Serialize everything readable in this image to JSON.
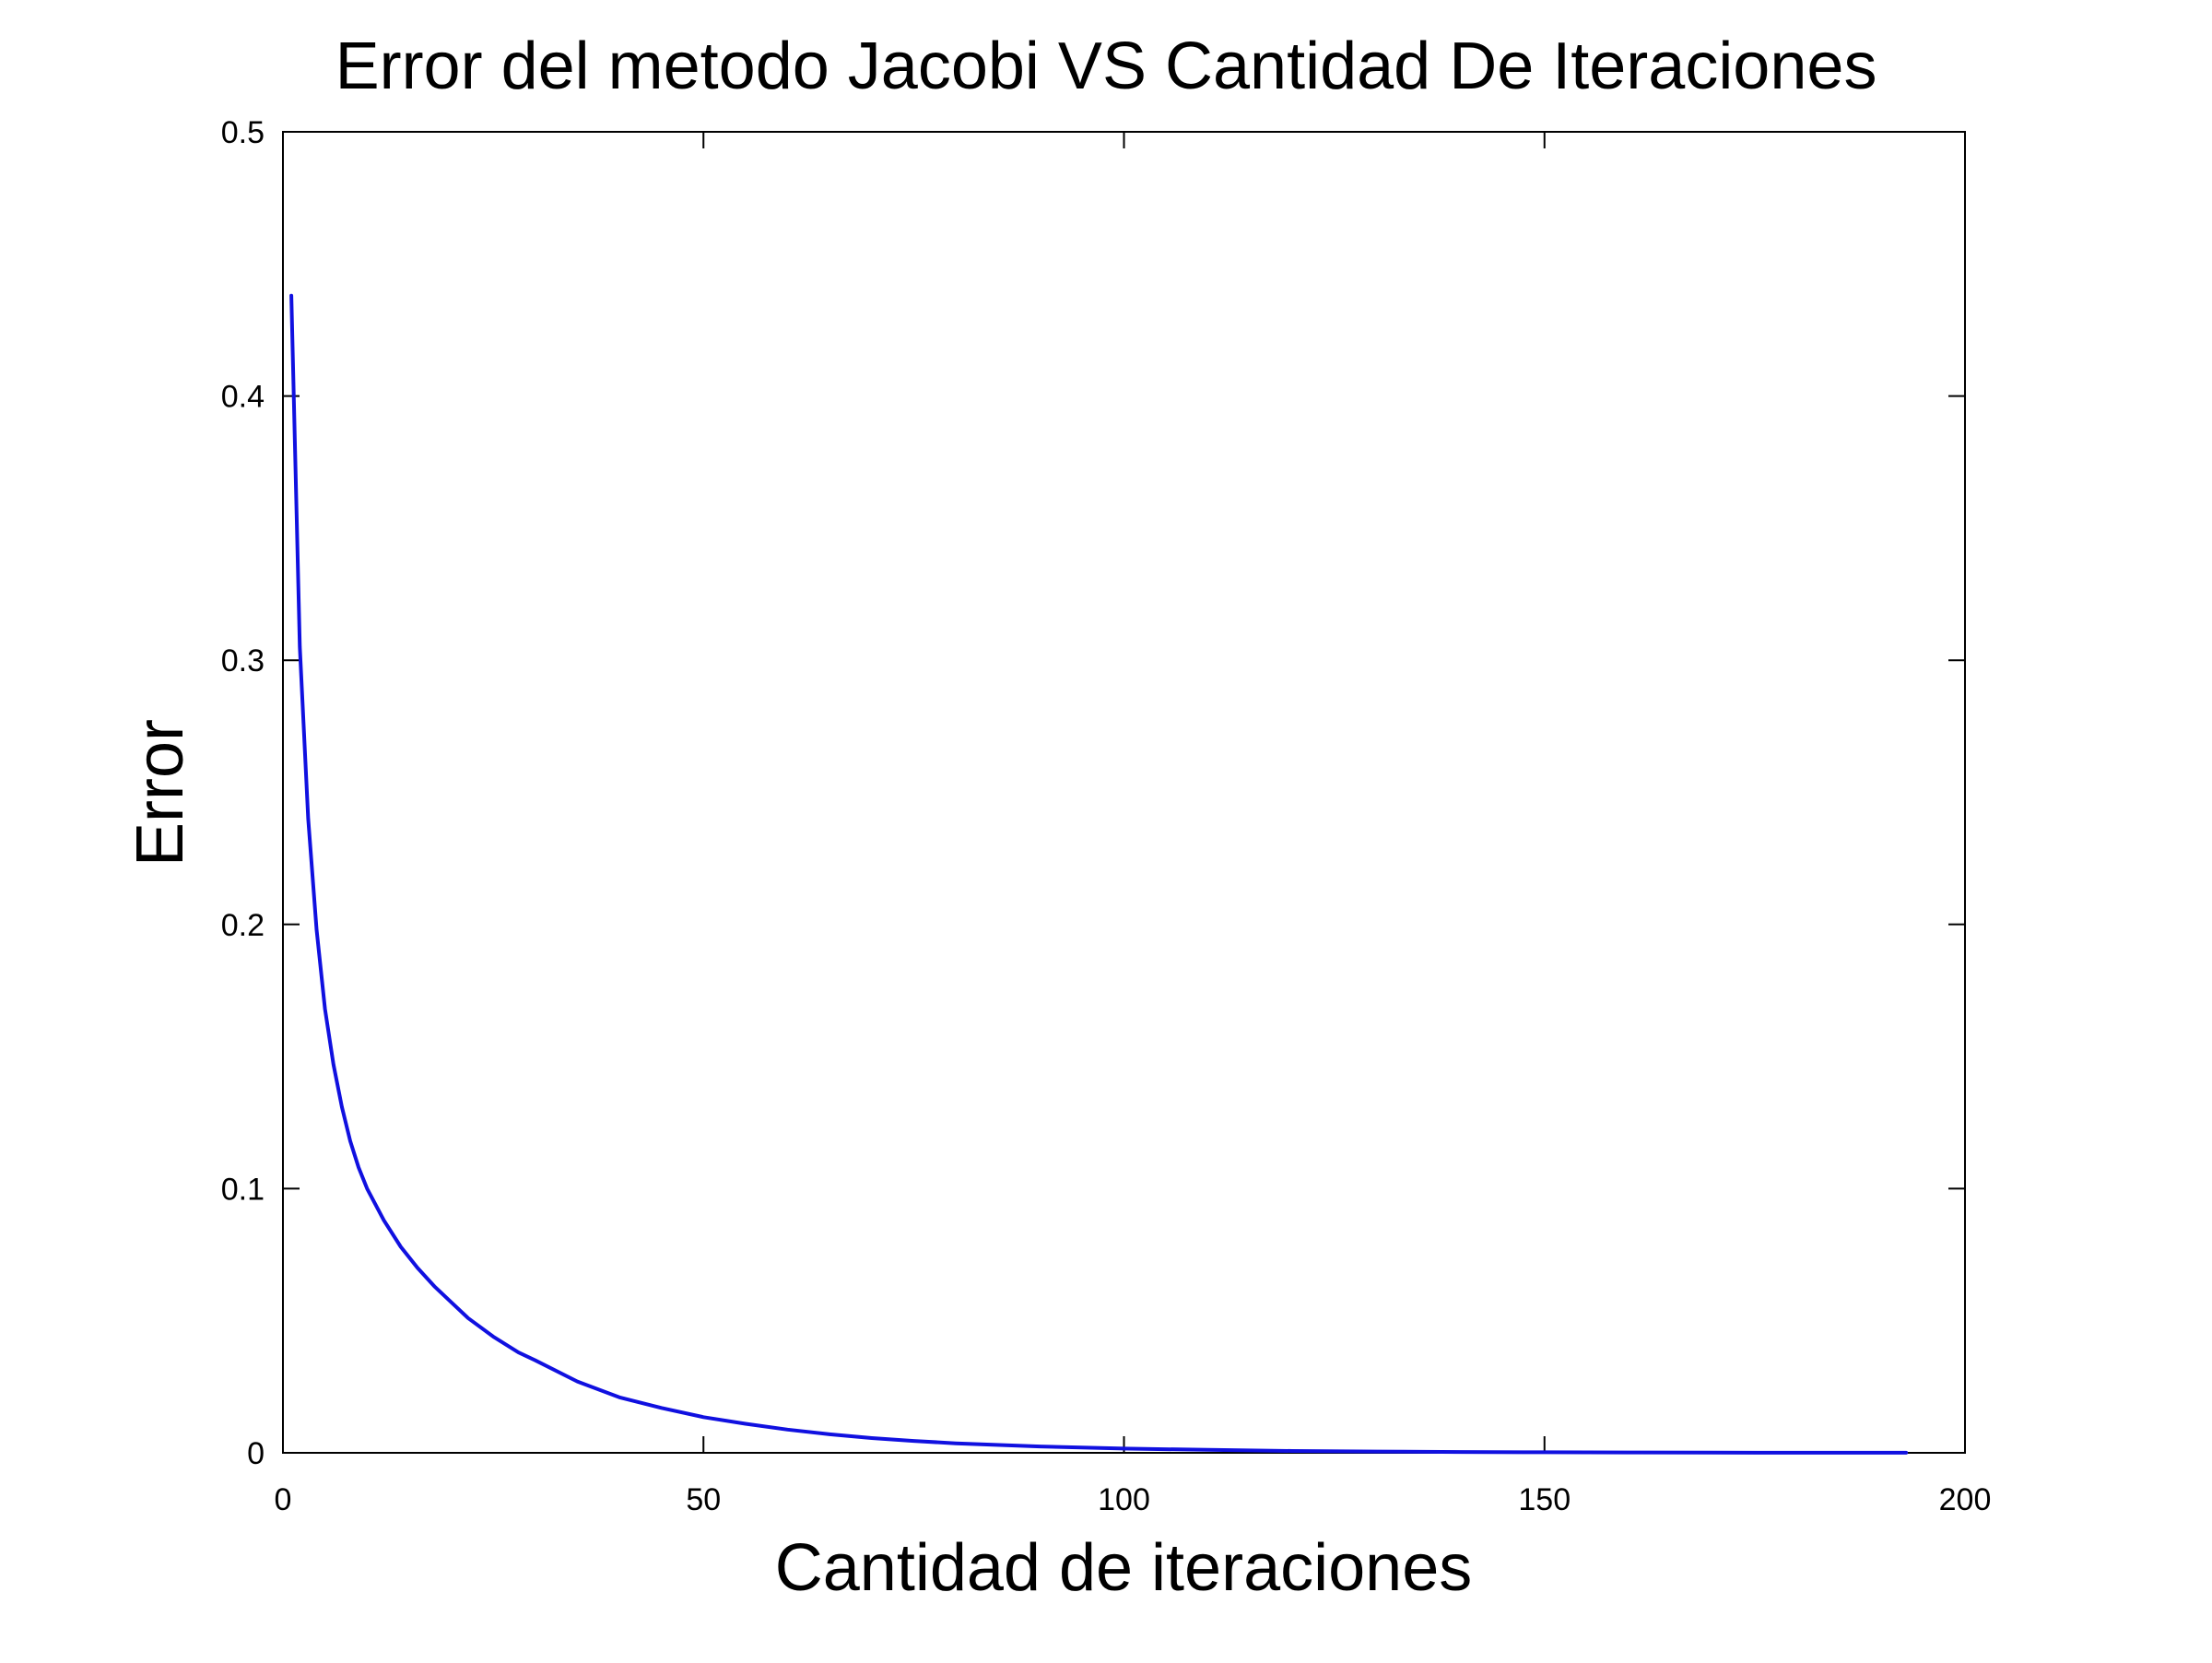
{
  "chart_data": {
    "type": "line",
    "title": "Error del metodo Jacobi VS Cantidad De Iteraciones",
    "xlabel": "Cantidad de iteraciones",
    "ylabel": "Error",
    "xlim": [
      0,
      200
    ],
    "ylim": [
      0,
      0.5
    ],
    "x_ticks": [
      "0",
      "50",
      "100",
      "150",
      "200"
    ],
    "y_ticks": [
      "0",
      "0.1",
      "0.2",
      "0.3",
      "0.4",
      "0.5"
    ],
    "grid": false,
    "legend": "none",
    "series": [
      {
        "color": "#1010e0",
        "x": [
          1,
          2,
          3,
          4,
          5,
          6,
          7,
          8,
          9,
          10,
          12,
          14,
          16,
          18,
          20,
          22,
          25,
          28,
          30,
          35,
          40,
          45,
          50,
          55,
          60,
          65,
          70,
          75,
          80,
          90,
          100,
          110,
          120,
          130,
          140,
          150,
          160,
          170,
          180,
          193
        ],
        "y": [
          0.438,
          0.305,
          0.24,
          0.198,
          0.168,
          0.147,
          0.131,
          0.118,
          0.108,
          0.1,
          0.088,
          0.078,
          0.07,
          0.063,
          0.057,
          0.051,
          0.044,
          0.038,
          0.035,
          0.027,
          0.021,
          0.017,
          0.0135,
          0.011,
          0.0088,
          0.007,
          0.0056,
          0.0045,
          0.0036,
          0.0024,
          0.0016,
          0.0011,
          0.0007,
          0.0005,
          0.0003,
          0.0002,
          0.00013,
          8e-05,
          5e-05,
          2e-05
        ]
      }
    ]
  }
}
